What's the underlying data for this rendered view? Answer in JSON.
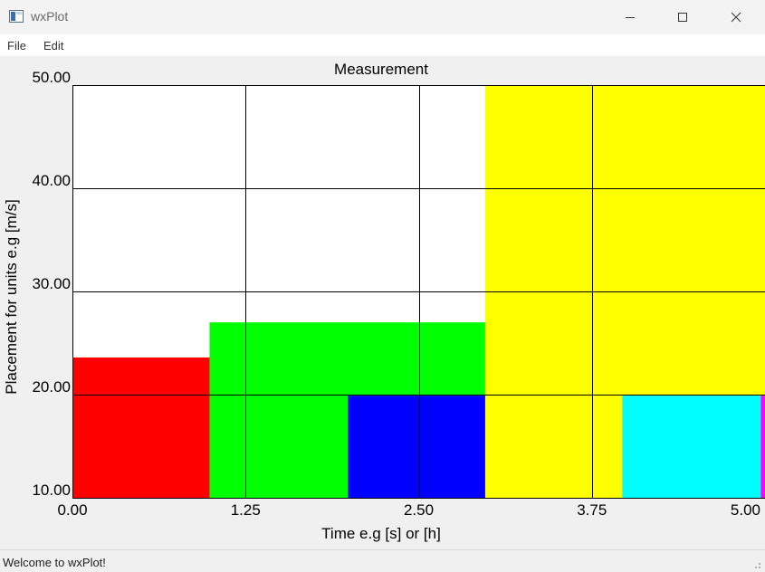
{
  "window": {
    "title": "wxPlot"
  },
  "menu": {
    "items": [
      "File",
      "Edit"
    ]
  },
  "status": {
    "text": "Welcome to wxPlot!"
  },
  "chart_data": {
    "type": "bar",
    "title": "Measurement",
    "xlabel": "Time e.g [s] or [h]",
    "ylabel": "Placement for units e.g [m/s]",
    "xlim": [
      0,
      5
    ],
    "ylim": [
      10,
      50
    ],
    "x_ticks": [
      "0.00",
      "1.25",
      "2.50",
      "3.75",
      "5.00"
    ],
    "y_ticks": [
      "10.00",
      "20.00",
      "30.00",
      "40.00",
      "50.00"
    ],
    "grid": true,
    "bars": [
      {
        "x0": 0.0,
        "x1": 0.99,
        "value": 23.6,
        "color": "#ff0000"
      },
      {
        "x0": 0.99,
        "x1": 2.98,
        "value": 27.0,
        "color": "#00ff00"
      },
      {
        "x0": 1.99,
        "x1": 2.98,
        "value": 19.9,
        "color": "#0000ff"
      },
      {
        "x0": 2.98,
        "x1": 5.0,
        "value": 50.0,
        "color": "#ffff00"
      },
      {
        "x0": 3.97,
        "x1": 4.97,
        "value": 19.9,
        "color": "#00ffff"
      },
      {
        "x0": 4.97,
        "x1": 5.0,
        "value": 19.9,
        "color": "#ff00ff"
      }
    ]
  }
}
